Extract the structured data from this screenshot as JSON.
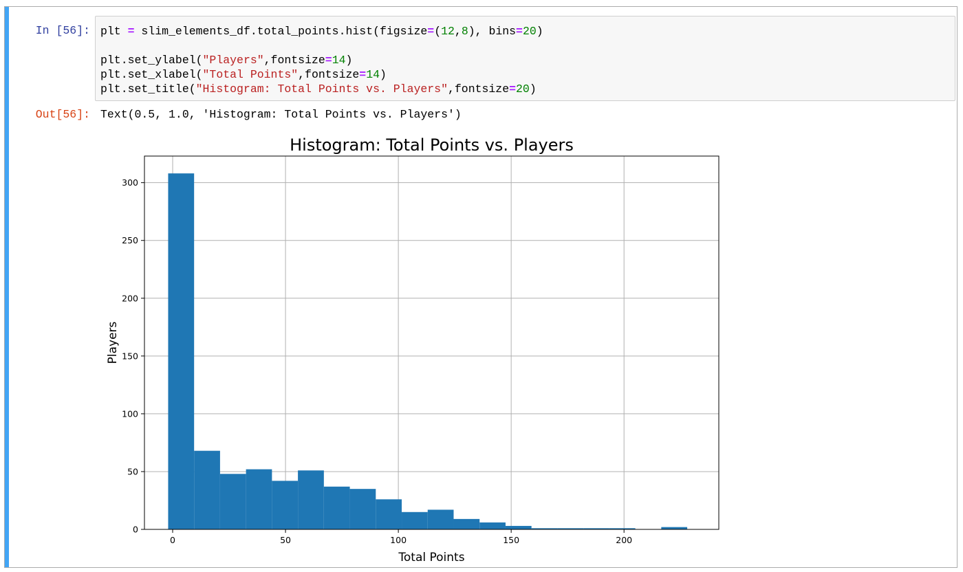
{
  "cell": {
    "input_prompt": "In [56]:",
    "output_prompt": "Out[56]:",
    "code_lines": [
      [
        {
          "t": "plt ",
          "c": ""
        },
        {
          "t": "=",
          "c": "op"
        },
        {
          "t": " slim_elements_df.total_points.hist(figsize",
          "c": ""
        },
        {
          "t": "=",
          "c": "op"
        },
        {
          "t": "(",
          "c": ""
        },
        {
          "t": "12",
          "c": "num"
        },
        {
          "t": ",",
          "c": ""
        },
        {
          "t": "8",
          "c": "num"
        },
        {
          "t": "), bins",
          "c": ""
        },
        {
          "t": "=",
          "c": "op"
        },
        {
          "t": "20",
          "c": "num"
        },
        {
          "t": ")",
          "c": ""
        }
      ],
      [],
      [
        {
          "t": "plt.set_ylabel(",
          "c": ""
        },
        {
          "t": "\"Players\"",
          "c": "str"
        },
        {
          "t": ",fontsize",
          "c": ""
        },
        {
          "t": "=",
          "c": "op"
        },
        {
          "t": "14",
          "c": "num"
        },
        {
          "t": ")",
          "c": ""
        }
      ],
      [
        {
          "t": "plt.set_xlabel(",
          "c": ""
        },
        {
          "t": "\"Total Points\"",
          "c": "str"
        },
        {
          "t": ",fontsize",
          "c": ""
        },
        {
          "t": "=",
          "c": "op"
        },
        {
          "t": "14",
          "c": "num"
        },
        {
          "t": ")",
          "c": ""
        }
      ],
      [
        {
          "t": "plt.set_title(",
          "c": ""
        },
        {
          "t": "\"Histogram: Total Points vs. Players\"",
          "c": "str"
        },
        {
          "t": ",fontsize",
          "c": ""
        },
        {
          "t": "=",
          "c": "op"
        },
        {
          "t": "20",
          "c": "num"
        },
        {
          "t": ")",
          "c": ""
        }
      ]
    ],
    "output_text": "Text(0.5, 1.0, 'Histogram: Total Points vs. Players')"
  },
  "colors": {
    "bar": "#1f77b4",
    "grid": "#b0b0b0",
    "cell_indicator": "#42a5f5"
  },
  "chart_data": {
    "type": "bar",
    "title": "Histogram: Total Points vs. Players",
    "xlabel": "Total Points",
    "ylabel": "Players",
    "xlim": [
      -12.5,
      242
    ],
    "ylim": [
      0,
      323
    ],
    "grid": true,
    "xticks": [
      0,
      50,
      100,
      150,
      200
    ],
    "yticks": [
      0,
      50,
      100,
      150,
      200,
      250,
      300
    ],
    "bin_edges": [
      -2,
      9.5,
      21,
      32.5,
      44,
      55.5,
      67,
      78.5,
      90,
      101.5,
      113,
      124.5,
      136,
      147.5,
      159,
      170.5,
      182,
      193.5,
      205,
      216.5,
      228
    ],
    "values": [
      308,
      68,
      48,
      52,
      42,
      51,
      37,
      35,
      26,
      15,
      17,
      9,
      6,
      3,
      1,
      1,
      1,
      1,
      0,
      2
    ]
  }
}
